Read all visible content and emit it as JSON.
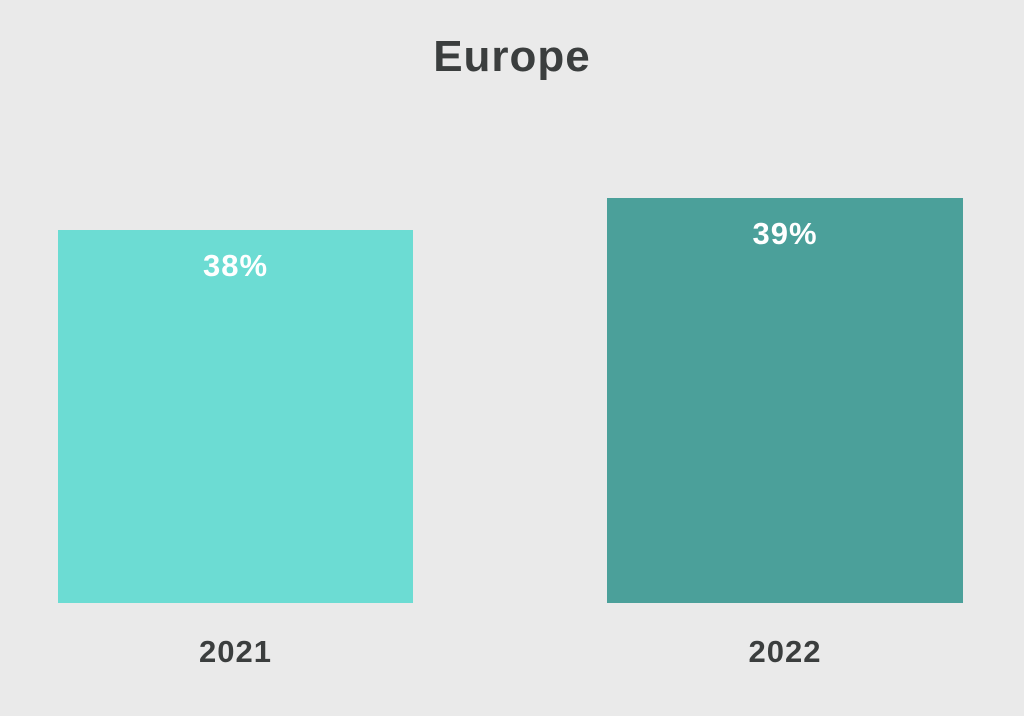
{
  "chart_data": {
    "type": "bar",
    "title": "Europe",
    "categories": [
      "2021",
      "2022"
    ],
    "values": [
      38,
      39
    ],
    "value_labels": [
      "38%",
      "39%"
    ],
    "bar_colors": [
      "#6CDCD3",
      "#4BA09A"
    ],
    "background_color": "#EAEAEA",
    "title_color": "#3B3E3E",
    "value_label_color": "#FFFFFF",
    "category_label_color": "#3B3E3E",
    "xlabel": "",
    "ylabel": "",
    "grid": false,
    "legend": "none",
    "axes_shown": false
  }
}
